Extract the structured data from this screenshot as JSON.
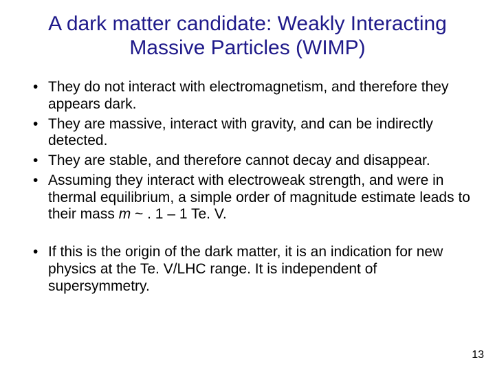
{
  "title_color": "#1f1a8a",
  "body_color": "#000000",
  "background_color": "#ffffff",
  "title_fontsize": 30,
  "body_fontsize": 21,
  "pagenum_fontsize": 16,
  "title": "A dark matter candidate:  Weakly Interacting Massive Particles (WIMP)",
  "bullets_group1": [
    "They do not interact with electromagnetism, and therefore they appears dark.",
    "They are massive, interact with gravity, and can be indirectly detected.",
    "They are stable, and therefore cannot decay and disappear.",
    "Assuming they interact with electroweak strength, and were in thermal equilibrium, a simple order of magnitude estimate leads to their mass m ~  . 1 – 1 Te. V."
  ],
  "bullets_group2": [
    "If this is the origin of the dark matter, it is an indication for new physics at the Te. V/LHC range.  It is independent of supersymmetry."
  ],
  "page_number": "13"
}
